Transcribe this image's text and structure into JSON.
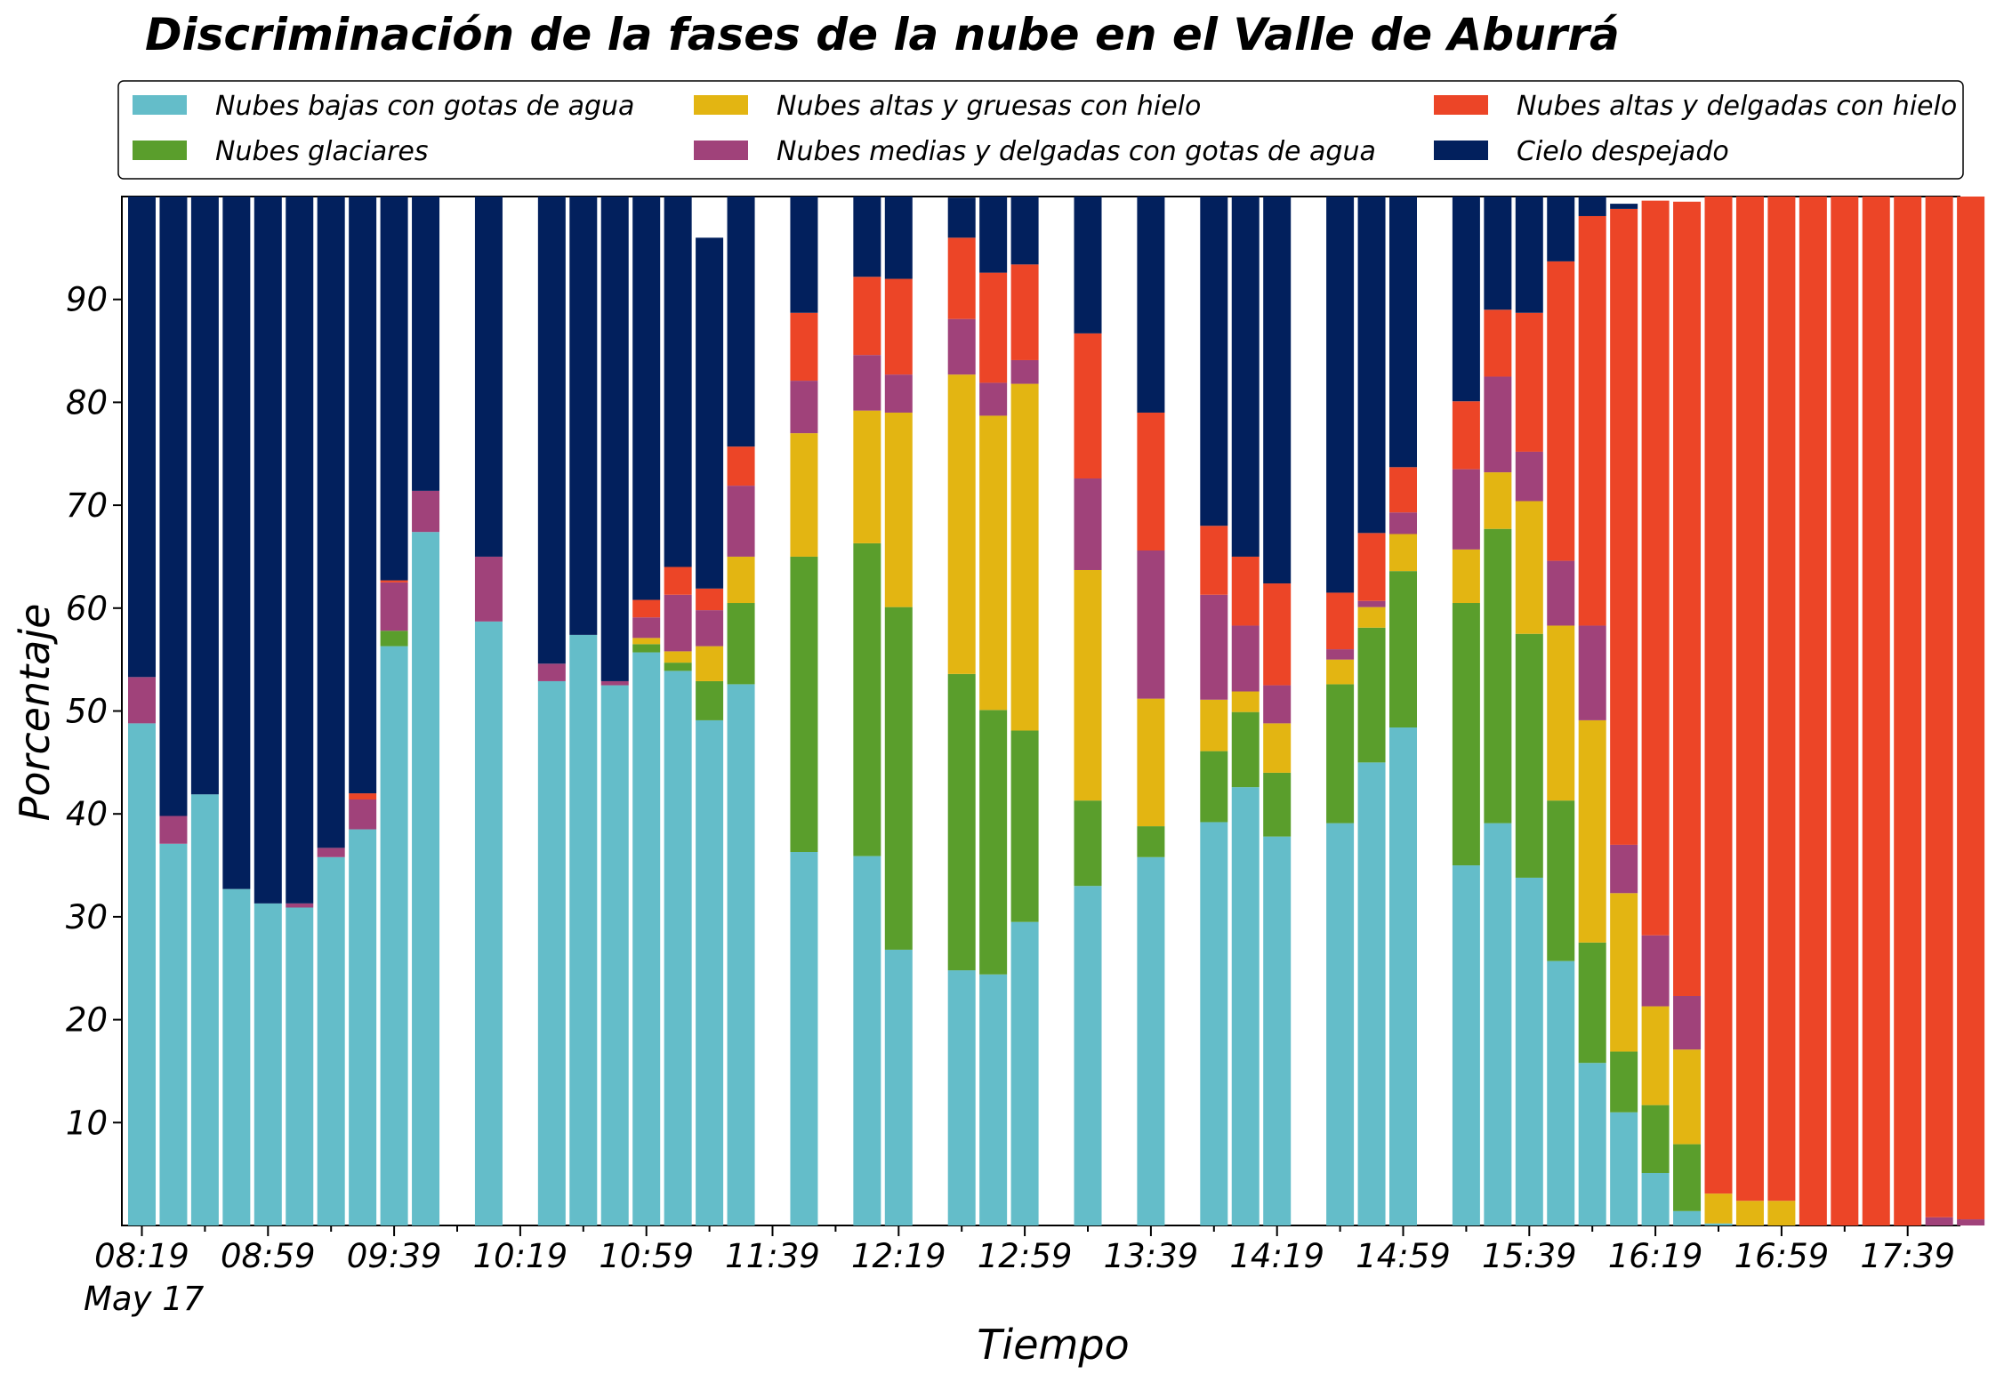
{
  "chart_data": {
    "type": "bar",
    "stacked": true,
    "title": "Discriminación de la fases de la nube en el Valle de Aburrá",
    "xlabel": "Tiempo",
    "ylabel": "Porcentaje",
    "ylim": [
      0,
      100
    ],
    "yticks": [
      10,
      20,
      30,
      40,
      50,
      60,
      70,
      80,
      90
    ],
    "grid": false,
    "legend_position": "top",
    "x_time_start": "08:19",
    "x_interval_minutes": 10,
    "xtick_labels": [
      "08:19",
      "08:59",
      "09:39",
      "10:19",
      "10:59",
      "11:39",
      "12:19",
      "12:59",
      "13:39",
      "14:19",
      "14:59",
      "15:39",
      "16:19",
      "16:59",
      "17:39"
    ],
    "date_label": "May 17",
    "series": [
      {
        "name": "Nubes bajas con gotas de agua",
        "color": "#64bdc9",
        "values": [
          48.8,
          37.1,
          41.9,
          32.7,
          31.3,
          30.9,
          35.8,
          38.5,
          56.3,
          67.4,
          null,
          58.7,
          null,
          52.9,
          57.4,
          52.5,
          55.7,
          53.9,
          49.1,
          52.6,
          null,
          36.3,
          null,
          35.9,
          26.8,
          null,
          24.8,
          24.4,
          29.5,
          null,
          33.0,
          null,
          35.8,
          null,
          39.2,
          42.6,
          37.8,
          null,
          39.1,
          45.0,
          48.4,
          null,
          35.0,
          39.1,
          33.8,
          25.7,
          15.8,
          11.0,
          5.1,
          1.4,
          0.2,
          0,
          0,
          0,
          0,
          0,
          0,
          0,
          0
        ]
      },
      {
        "name": "Nubes glaciares",
        "color": "#5a9e2c",
        "values": [
          0,
          0,
          0,
          0,
          0,
          0,
          0,
          0,
          1.5,
          0,
          null,
          0,
          null,
          0,
          0,
          0,
          0.8,
          0.8,
          3.8,
          7.9,
          null,
          28.7,
          null,
          30.4,
          33.3,
          null,
          28.8,
          25.7,
          18.6,
          null,
          8.3,
          null,
          3.0,
          null,
          6.9,
          7.3,
          6.2,
          null,
          13.5,
          13.1,
          15.2,
          null,
          25.5,
          28.6,
          23.7,
          15.6,
          11.7,
          5.9,
          6.6,
          6.5,
          0,
          0,
          0,
          0,
          0,
          0,
          0,
          0,
          0
        ]
      },
      {
        "name": "Nubes altas y gruesas con hielo",
        "color": "#e3b512",
        "values": [
          0,
          0,
          0,
          0,
          0,
          0,
          0,
          0,
          0,
          0,
          null,
          0,
          null,
          0,
          0,
          0,
          0.6,
          1.1,
          3.4,
          4.5,
          null,
          12.0,
          null,
          12.9,
          18.9,
          null,
          29.1,
          28.6,
          33.7,
          null,
          22.4,
          null,
          12.4,
          null,
          5.0,
          2.0,
          4.8,
          null,
          2.4,
          2.0,
          3.6,
          null,
          5.2,
          5.5,
          12.9,
          17.0,
          21.6,
          15.4,
          9.6,
          9.2,
          2.9,
          2.4,
          2.4,
          0,
          0,
          0,
          0,
          0,
          0
        ]
      },
      {
        "name": "Nubes medias y delgadas con gotas de agua",
        "color": "#a0427a",
        "values": [
          4.5,
          2.7,
          0,
          0,
          0,
          0.4,
          0.9,
          2.9,
          4.7,
          4.0,
          null,
          6.3,
          null,
          1.7,
          0,
          0.4,
          2.0,
          5.5,
          3.5,
          6.9,
          null,
          5.1,
          null,
          5.4,
          3.7,
          null,
          5.4,
          3.2,
          2.3,
          null,
          8.9,
          null,
          14.4,
          null,
          10.2,
          6.4,
          3.7,
          null,
          1.0,
          0.6,
          2.1,
          null,
          7.8,
          9.3,
          4.8,
          6.3,
          9.2,
          4.7,
          6.9,
          5.2,
          0,
          0,
          0,
          0,
          0,
          0,
          0,
          0.8,
          0.6
        ]
      },
      {
        "name": "Nubes altas y delgadas con hielo",
        "color": "#ec4527",
        "values": [
          0,
          0,
          0,
          0,
          0,
          0,
          0,
          0.6,
          0.2,
          0,
          null,
          0,
          null,
          0,
          0,
          0,
          1.7,
          2.7,
          2.1,
          3.8,
          null,
          6.6,
          null,
          7.6,
          9.3,
          null,
          7.9,
          10.7,
          9.3,
          null,
          14.1,
          null,
          13.4,
          null,
          6.7,
          6.7,
          9.9,
          null,
          5.5,
          6.6,
          4.4,
          null,
          6.6,
          6.5,
          13.5,
          29.1,
          39.8,
          61.8,
          71.4,
          77.2,
          96.9,
          97.6,
          97.6,
          100,
          100,
          100,
          100,
          99.2,
          99.4
        ]
      },
      {
        "name": "Cielo despejado",
        "color": "#02205d",
        "values": [
          46.7,
          60.2,
          58.1,
          67.3,
          68.7,
          68.7,
          63.3,
          58.0,
          37.3,
          28.6,
          null,
          35.0,
          null,
          45.4,
          42.6,
          47.1,
          39.2,
          36.0,
          34.1,
          24.3,
          null,
          11.3,
          null,
          8.4,
          8.0,
          null,
          3.9,
          7.4,
          6.6,
          null,
          13.3,
          null,
          21.0,
          null,
          32.0,
          35.0,
          37.6,
          null,
          38.5,
          32.7,
          26.3,
          null,
          19.9,
          11.0,
          11.3,
          6.3,
          1.9,
          0.5,
          0,
          0,
          0,
          0,
          0,
          0,
          0,
          0,
          0,
          0,
          0
        ]
      }
    ]
  }
}
